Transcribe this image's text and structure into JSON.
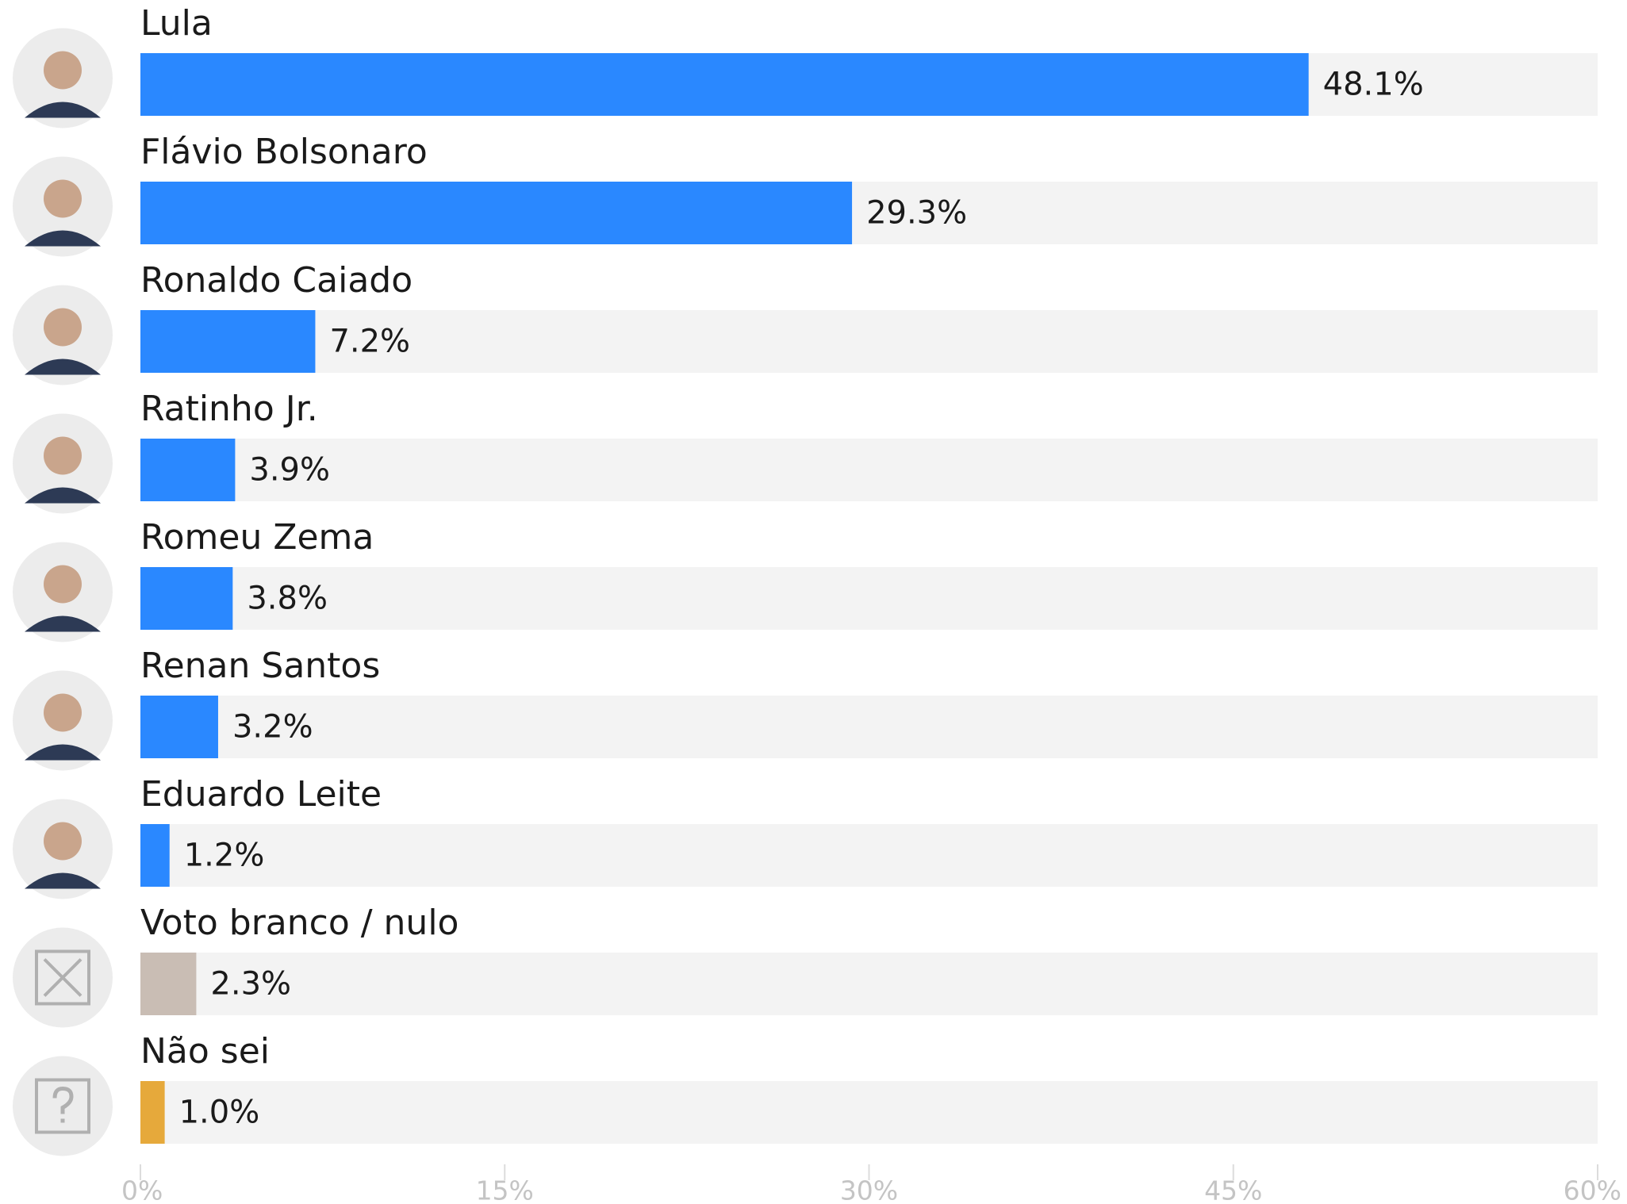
{
  "chart_data": {
    "type": "bar",
    "orientation": "horizontal",
    "categories": [
      "Lula",
      "Flávio Bolsonaro",
      "Ronaldo Caiado",
      "Ratinho Jr.",
      "Romeu Zema",
      "Renan Santos",
      "Eduardo Leite",
      "Voto branco / nulo",
      "Não sei"
    ],
    "values": [
      48.1,
      29.3,
      7.2,
      3.9,
      3.8,
      3.2,
      1.2,
      2.3,
      1.0
    ],
    "value_labels": [
      "48.1%",
      "29.3%",
      "7.2%",
      "3.9%",
      "3.8%",
      "3.2%",
      "1.2%",
      "2.3%",
      "1.0%"
    ],
    "colors": [
      "#2a88ff",
      "#2a88ff",
      "#2a88ff",
      "#2a88ff",
      "#2a88ff",
      "#2a88ff",
      "#2a88ff",
      "#c9bdb4",
      "#e6a93b"
    ],
    "xlim": [
      0,
      60
    ],
    "xticks": [
      {
        "value": 0,
        "label": "0%"
      },
      {
        "value": 15,
        "label": "15%"
      },
      {
        "value": 30,
        "label": "30%"
      },
      {
        "value": 45,
        "label": "45%"
      },
      {
        "value": 60,
        "label": "60%"
      }
    ]
  }
}
